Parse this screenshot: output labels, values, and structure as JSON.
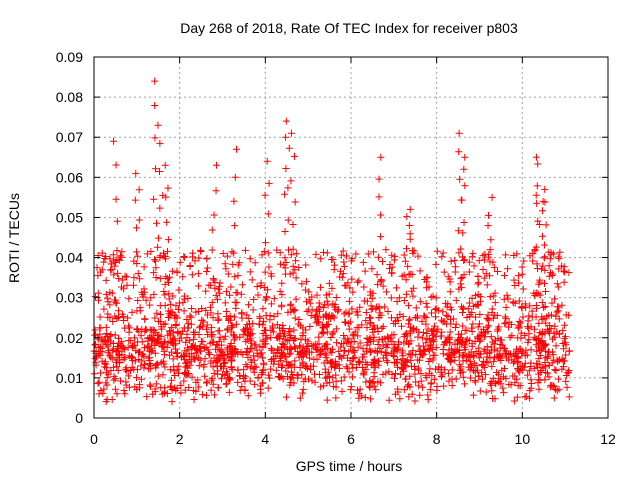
{
  "chart_data": {
    "type": "scatter",
    "title": "Day 268 of 2018, Rate Of TEC Index for receiver p803",
    "xlabel": "GPS time / hours",
    "ylabel": "ROTI / TECUs",
    "xlim": [
      0,
      12
    ],
    "ylim": [
      0,
      0.09
    ],
    "x_ticks": [
      0,
      2,
      4,
      6,
      8,
      10,
      12
    ],
    "y_ticks": [
      0,
      0.01,
      0.02,
      0.03,
      0.04,
      0.05,
      0.06,
      0.07,
      0.08,
      0.09
    ],
    "x_tick_labels": [
      "0",
      "2",
      "4",
      "6",
      "8",
      "10",
      "12"
    ],
    "y_tick_labels": [
      "0",
      "0.01",
      "0.02",
      "0.03",
      "0.04",
      "0.05",
      "0.06",
      "0.07",
      "0.08",
      "0.09"
    ],
    "grid": true,
    "marker": "+",
    "marker_color": "#ff0000",
    "data_gap_hours": [
      8.05,
      8.1
    ],
    "data_range_hours": [
      0,
      11.1
    ],
    "series": [
      {
        "name": "ROTI",
        "peaks": [
          {
            "x": 0.5,
            "y": 0.069
          },
          {
            "x": 1.0,
            "y": 0.061
          },
          {
            "x": 1.45,
            "y": 0.084
          },
          {
            "x": 1.55,
            "y": 0.073
          },
          {
            "x": 1.7,
            "y": 0.063
          },
          {
            "x": 2.8,
            "y": 0.063
          },
          {
            "x": 3.3,
            "y": 0.067
          },
          {
            "x": 4.05,
            "y": 0.064
          },
          {
            "x": 4.5,
            "y": 0.074
          },
          {
            "x": 4.65,
            "y": 0.071
          },
          {
            "x": 6.7,
            "y": 0.065
          },
          {
            "x": 7.35,
            "y": 0.052
          },
          {
            "x": 8.55,
            "y": 0.071
          },
          {
            "x": 8.6,
            "y": 0.065
          },
          {
            "x": 9.25,
            "y": 0.055
          },
          {
            "x": 10.35,
            "y": 0.065
          },
          {
            "x": 10.5,
            "y": 0.057
          }
        ]
      }
    ]
  }
}
